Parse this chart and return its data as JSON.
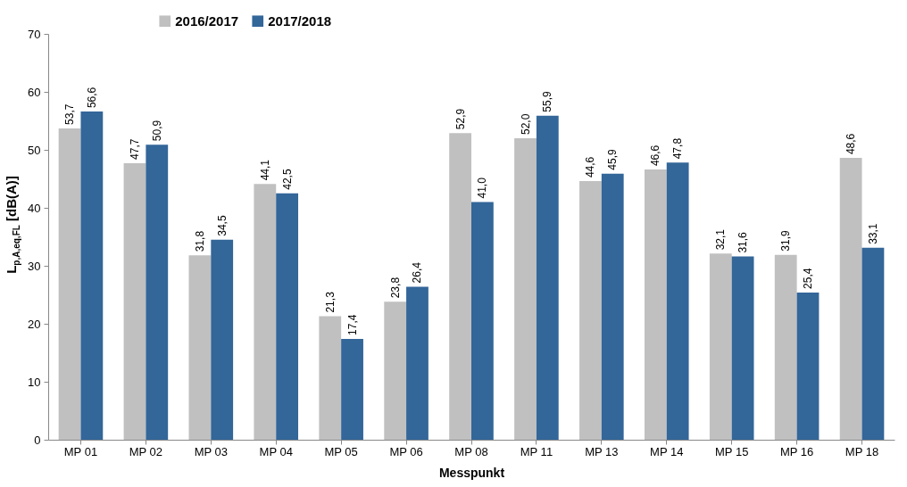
{
  "chart_data": {
    "type": "bar",
    "xlabel": "Messpunkt",
    "ylabel": "L$_{p,A,eq,FL}$ [dB(A)]",
    "categories": [
      "MP 01",
      "MP 02",
      "MP 03",
      "MP 04",
      "MP 05",
      "MP 06",
      "MP 08",
      "MP 11",
      "MP 13",
      "MP 14",
      "MP 15",
      "MP 16",
      "MP 18"
    ],
    "series": [
      {
        "name": "2016/2017",
        "color": "#c0c0c0",
        "values": [
          53.7,
          47.7,
          31.8,
          44.1,
          21.3,
          23.8,
          52.9,
          52.0,
          44.6,
          46.6,
          32.1,
          31.9,
          48.6
        ],
        "value_labels": [
          "53,7",
          "47,7",
          "31,8",
          "44,1",
          "21,3",
          "23,8",
          "52,9",
          "52,0",
          "44,6",
          "46,6",
          "32,1",
          "31,9",
          "48,6"
        ]
      },
      {
        "name": "2017/2018",
        "color": "#336699",
        "values": [
          56.6,
          50.9,
          34.5,
          42.5,
          17.4,
          26.4,
          41.0,
          55.9,
          45.9,
          47.8,
          31.6,
          25.4,
          33.1
        ],
        "value_labels": [
          "56,6",
          "50,9",
          "34,5",
          "42,5",
          "17,4",
          "26,4",
          "41,0",
          "55,9",
          "45,9",
          "47,8",
          "31,6",
          "25,4",
          "33,1"
        ]
      }
    ],
    "ylim": [
      0,
      70
    ],
    "yticks": [
      0,
      10,
      20,
      30,
      40,
      50,
      60,
      70
    ],
    "grid": false,
    "legend": "top"
  }
}
